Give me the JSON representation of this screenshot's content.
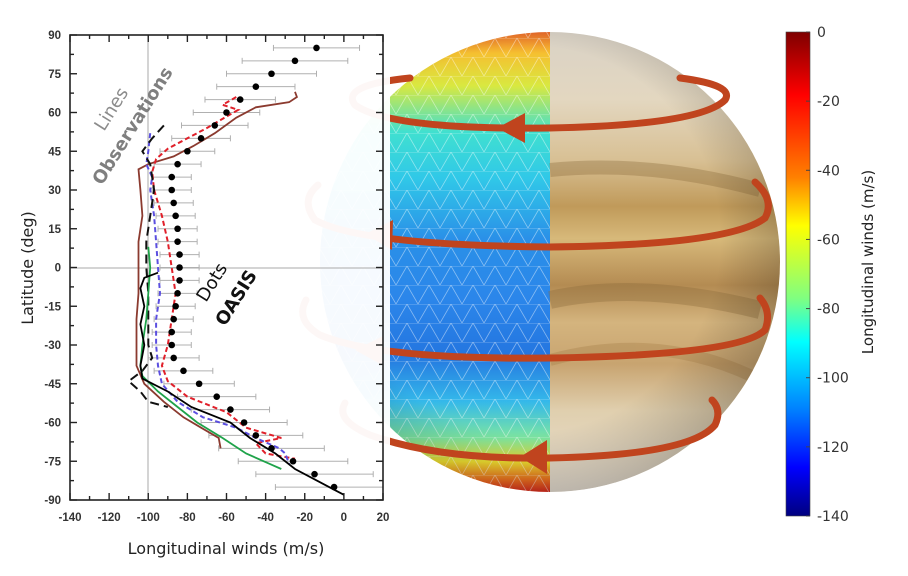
{
  "chart_data": [
    {
      "type": "scatter",
      "title": "",
      "xlabel": "Longitudinal winds (m/s)",
      "ylabel": "Latitude (deg)",
      "xlim": [
        -140,
        20
      ],
      "ylim": [
        -90,
        90
      ],
      "xticks": [
        -140,
        -120,
        -100,
        -80,
        -60,
        -40,
        -20,
        0,
        20
      ],
      "yticks": [
        90,
        75,
        60,
        45,
        30,
        15,
        0,
        -15,
        -30,
        -45,
        -60,
        -75,
        -90
      ],
      "grid": "reference lines at x=-100 and y=0",
      "annotations": [
        {
          "text": "Lines",
          "style": "light grey, rotated"
        },
        {
          "text": "Observations",
          "style": "bold grey, rotated"
        },
        {
          "text": "Dots",
          "style": "black, rotated"
        },
        {
          "text": "OASIS",
          "style": "bold black, rotated"
        }
      ],
      "series": [
        {
          "name": "OASIS (dots with error bars)",
          "marker": "dot",
          "color": "#000000",
          "points": [
            {
              "lat": 85,
              "v": -14,
              "err": 22
            },
            {
              "lat": 80,
              "v": -25,
              "err": 27
            },
            {
              "lat": 75,
              "v": -37,
              "err": 23
            },
            {
              "lat": 70,
              "v": -45,
              "err": 20
            },
            {
              "lat": 65,
              "v": -53,
              "err": 18
            },
            {
              "lat": 60,
              "v": -60,
              "err": 17
            },
            {
              "lat": 55,
              "v": -66,
              "err": 17
            },
            {
              "lat": 50,
              "v": -73,
              "err": 15
            },
            {
              "lat": 45,
              "v": -80,
              "err": 14
            },
            {
              "lat": 40,
              "v": -85,
              "err": 12
            },
            {
              "lat": 35,
              "v": -88,
              "err": 10
            },
            {
              "lat": 30,
              "v": -88,
              "err": 10
            },
            {
              "lat": 25,
              "v": -87,
              "err": 10
            },
            {
              "lat": 20,
              "v": -86,
              "err": 10
            },
            {
              "lat": 15,
              "v": -85,
              "err": 10
            },
            {
              "lat": 10,
              "v": -85,
              "err": 10
            },
            {
              "lat": 5,
              "v": -84,
              "err": 10
            },
            {
              "lat": 0,
              "v": -84,
              "err": 10
            },
            {
              "lat": -5,
              "v": -84,
              "err": 10
            },
            {
              "lat": -10,
              "v": -85,
              "err": 10
            },
            {
              "lat": -15,
              "v": -86,
              "err": 10
            },
            {
              "lat": -20,
              "v": -87,
              "err": 10
            },
            {
              "lat": -25,
              "v": -88,
              "err": 10
            },
            {
              "lat": -30,
              "v": -88,
              "err": 10
            },
            {
              "lat": -35,
              "v": -87,
              "err": 13
            },
            {
              "lat": -40,
              "v": -82,
              "err": 15
            },
            {
              "lat": -45,
              "v": -74,
              "err": 18
            },
            {
              "lat": -50,
              "v": -65,
              "err": 20
            },
            {
              "lat": -55,
              "v": -58,
              "err": 20
            },
            {
              "lat": -60,
              "v": -51,
              "err": 22
            },
            {
              "lat": -65,
              "v": -45,
              "err": 24
            },
            {
              "lat": -70,
              "v": -37,
              "err": 27
            },
            {
              "lat": -75,
              "v": -26,
              "err": 28
            },
            {
              "lat": -80,
              "v": -15,
              "err": 30
            },
            {
              "lat": -85,
              "v": -5,
              "err": 30
            }
          ]
        },
        {
          "name": "Observation (brown solid)",
          "color": "#8b3a2f",
          "style": "solid",
          "points": [
            [
              68,
              -25
            ],
            [
              66,
              -24
            ],
            [
              64,
              -28
            ],
            [
              62,
              -45
            ],
            [
              58,
              -55
            ],
            [
              52,
              -66
            ],
            [
              47,
              -77
            ],
            [
              43,
              -87
            ],
            [
              40,
              -100
            ],
            [
              38,
              -105
            ],
            [
              30,
              -104
            ],
            [
              20,
              -103
            ],
            [
              10,
              -105
            ],
            [
              0,
              -105
            ],
            [
              -10,
              -105
            ],
            [
              -20,
              -106
            ],
            [
              -30,
              -106
            ],
            [
              -38,
              -106
            ],
            [
              -45,
              -102
            ],
            [
              -52,
              -92
            ],
            [
              -58,
              -82
            ],
            [
              -62,
              -73
            ],
            [
              -66,
              -64
            ],
            [
              -70,
              -63
            ]
          ]
        },
        {
          "name": "Observation (red dashed)",
          "color": "#e0202a",
          "style": "dashed",
          "points": [
            [
              66,
              -55
            ],
            [
              63,
              -62
            ],
            [
              61,
              -54
            ],
            [
              58,
              -61
            ],
            [
              54,
              -70
            ],
            [
              50,
              -80
            ],
            [
              46,
              -90
            ],
            [
              42,
              -96
            ],
            [
              37,
              -98
            ],
            [
              30,
              -97
            ],
            [
              20,
              -93
            ],
            [
              10,
              -90
            ],
            [
              0,
              -88
            ],
            [
              -10,
              -86
            ],
            [
              -20,
              -88
            ],
            [
              -30,
              -90
            ],
            [
              -38,
              -93
            ],
            [
              -44,
              -90
            ],
            [
              -50,
              -80
            ],
            [
              -56,
              -60
            ],
            [
              -62,
              -50
            ],
            [
              -66,
              -32
            ],
            [
              -68,
              -45
            ],
            [
              -72,
              -40
            ],
            [
              -74,
              -25
            ]
          ]
        },
        {
          "name": "Observation (blue dashed)",
          "color": "#5b4fe0",
          "style": "dashed",
          "points": [
            [
              52,
              -99
            ],
            [
              45,
              -100
            ],
            [
              40,
              -101
            ],
            [
              35,
              -98
            ],
            [
              30,
              -99
            ],
            [
              20,
              -97
            ],
            [
              10,
              -96
            ],
            [
              0,
              -95
            ],
            [
              -10,
              -94
            ],
            [
              -20,
              -96
            ],
            [
              -30,
              -96
            ],
            [
              -38,
              -95
            ],
            [
              -45,
              -93
            ],
            [
              -52,
              -85
            ],
            [
              -58,
              -72
            ],
            [
              -62,
              -55
            ],
            [
              -66,
              -45
            ],
            [
              -70,
              -33
            ],
            [
              -72,
              -30
            ],
            [
              -76,
              -28
            ]
          ]
        },
        {
          "name": "Observation (black dashed)",
          "color": "#111111",
          "style": "long-dashed",
          "points": [
            [
              55,
              -92
            ],
            [
              50,
              -98
            ],
            [
              45,
              -103
            ],
            [
              40,
              -99
            ],
            [
              30,
              -97
            ],
            [
              20,
              -99
            ],
            [
              10,
              -101
            ],
            [
              0,
              -101
            ],
            [
              -10,
              -100
            ],
            [
              -20,
              -100
            ],
            [
              -30,
              -100
            ],
            [
              -35,
              -98
            ],
            [
              -40,
              -103
            ],
            [
              -44,
              -110
            ],
            [
              -48,
              -104
            ],
            [
              -52,
              -100
            ],
            [
              -54,
              -90
            ]
          ]
        },
        {
          "name": "Observation (green solid)",
          "color": "#1fa34a",
          "style": "solid",
          "points": [
            [
              8,
              -100
            ],
            [
              0,
              -99
            ],
            [
              -10,
              -100
            ],
            [
              -20,
              -101
            ],
            [
              -30,
              -103
            ],
            [
              -38,
              -104
            ],
            [
              -42,
              -103
            ],
            [
              -48,
              -95
            ],
            [
              -54,
              -85
            ],
            [
              -60,
              -75
            ],
            [
              -66,
              -62
            ],
            [
              -72,
              -50
            ],
            [
              -76,
              -38
            ],
            [
              -78,
              -32
            ]
          ]
        },
        {
          "name": "Observation (black solid)",
          "color": "#000000",
          "style": "solid",
          "points": [
            [
              -2,
              -95
            ],
            [
              -4,
              -102
            ],
            [
              -8,
              -104
            ],
            [
              -15,
              -102
            ],
            [
              -22,
              -104
            ],
            [
              -30,
              -102
            ],
            [
              -38,
              -104
            ],
            [
              -43,
              -103
            ],
            [
              -48,
              -90
            ],
            [
              -54,
              -78
            ],
            [
              -60,
              -58
            ],
            [
              -66,
              -48
            ],
            [
              -72,
              -35
            ],
            [
              -78,
              -25
            ],
            [
              -82,
              -15
            ],
            [
              -86,
              -5
            ],
            [
              -88,
              0
            ]
          ]
        }
      ]
    },
    {
      "type": "heatmap",
      "title": "",
      "description": "Globe split: left half simulated wind field (OASIS) on icosahedral grid, right half visible cloud image; four red-brown arrows indicate retrograde westward circulation",
      "colorbar": {
        "label": "Longitudinal winds (m/s)",
        "range": [
          -140,
          0
        ],
        "ticks": [
          0,
          -20,
          -40,
          -60,
          -80,
          -100,
          -120,
          -140
        ],
        "colormap": "jet"
      },
      "arrow_color": "#c0441e"
    }
  ],
  "plot": {
    "xlabel": "Longitudinal winds (m/s)",
    "ylabel": "Latitude (deg)",
    "xticks": [
      "-140",
      "-120",
      "-100",
      "-80",
      "-60",
      "-40",
      "-20",
      "0",
      "20"
    ],
    "yticks": [
      "90",
      "75",
      "60",
      "45",
      "30",
      "15",
      "0",
      "-15",
      "-30",
      "-45",
      "-60",
      "-75",
      "-90"
    ],
    "anno_lines": "Lines",
    "anno_observations": "Observations",
    "anno_dots": "Dots",
    "anno_oasis": "OASIS"
  },
  "colorbar": {
    "label": "Longitudinal winds (m/s)",
    "ticks": [
      "0",
      "-20",
      "-40",
      "-60",
      "-80",
      "-100",
      "-120",
      "-140"
    ]
  }
}
